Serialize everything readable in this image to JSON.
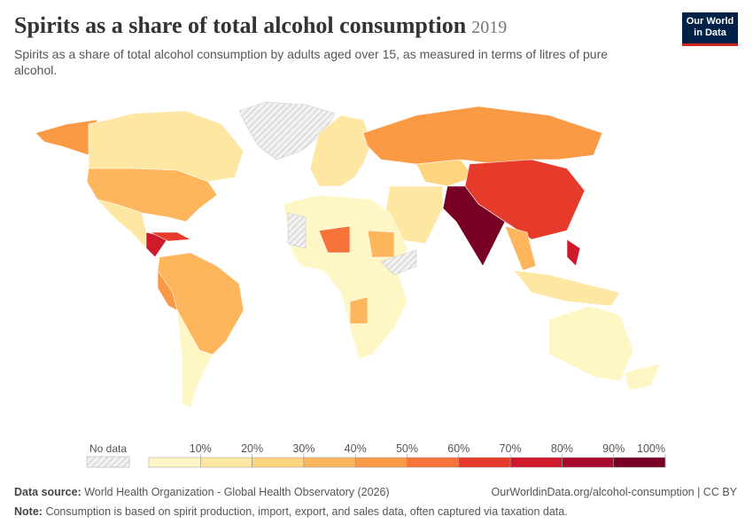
{
  "header": {
    "title": "Spirits as a share of total alcohol consumption",
    "year": "2019",
    "subtitle": "Spirits as a share of total alcohol consumption by adults aged over 15, as measured in terms of litres of pure alcohol."
  },
  "logo": {
    "line1": "Our World",
    "line2": "in Data"
  },
  "legend": {
    "no_data": "No data",
    "range": [
      0,
      100
    ],
    "ticks": [
      {
        "value": 10,
        "label": "10%"
      },
      {
        "value": 20,
        "label": "20%"
      },
      {
        "value": 30,
        "label": "30%"
      },
      {
        "value": 40,
        "label": "40%"
      },
      {
        "value": 50,
        "label": "50%"
      },
      {
        "value": 60,
        "label": "60%"
      },
      {
        "value": 70,
        "label": "70%"
      },
      {
        "value": 80,
        "label": "80%"
      },
      {
        "value": 90,
        "label": "90%"
      },
      {
        "value": 100,
        "label": "100%"
      }
    ],
    "colors": [
      "#fff6c6",
      "#fee6a3",
      "#fed47e",
      "#fdb65b",
      "#fb9a45",
      "#f6733a",
      "#e63b2a",
      "#cf1a2c",
      "#a8092d",
      "#770024"
    ]
  },
  "footer": {
    "source_label": "Data source:",
    "source": "World Health Organization - Global Health Observatory (2026)",
    "url": "OurWorldinData.org/alcohol-consumption | CC BY",
    "note_label": "Note:",
    "note": "Consumption is based on spirit production, import, export, and sales data, often captured via taxation data."
  }
}
